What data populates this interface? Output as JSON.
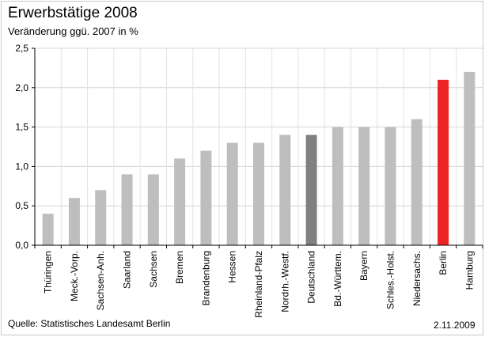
{
  "title": "Erwerbstätige 2008",
  "subtitle": "Veränderung ggü. 2007 in %",
  "source": "Quelle: Statistisches Landesamt Berlin",
  "date": "2.11.2009",
  "colors": {
    "default": "#bebebe",
    "national": "#808080",
    "highlight": "#ee2222"
  },
  "chart_data": {
    "type": "bar",
    "categories": [
      "Thüringen",
      "Meck.-Vorp.",
      "Sachsen-Anh.",
      "Saarland",
      "Sachsen",
      "Bremen",
      "Brandenburg",
      "Hessen",
      "Rheinland-Pfalz",
      "Nordrh.-Westf.",
      "Deutschland",
      "Bd.-Württem.",
      "Bayern",
      "Schles.-Holst.",
      "Niedersachs.",
      "Berlin",
      "Hamburg"
    ],
    "values": [
      0.4,
      0.6,
      0.7,
      0.9,
      0.9,
      1.1,
      1.2,
      1.3,
      1.3,
      1.4,
      1.4,
      1.5,
      1.5,
      1.5,
      1.6,
      2.1,
      2.2
    ],
    "highlight": {
      "Deutschland": "national",
      "Berlin": "highlight"
    },
    "ylim": [
      0,
      2.5
    ],
    "yticks": [
      "0,0",
      "0,5",
      "1,0",
      "1,5",
      "2,0",
      "2,5"
    ],
    "grid": true,
    "legend": "none"
  }
}
